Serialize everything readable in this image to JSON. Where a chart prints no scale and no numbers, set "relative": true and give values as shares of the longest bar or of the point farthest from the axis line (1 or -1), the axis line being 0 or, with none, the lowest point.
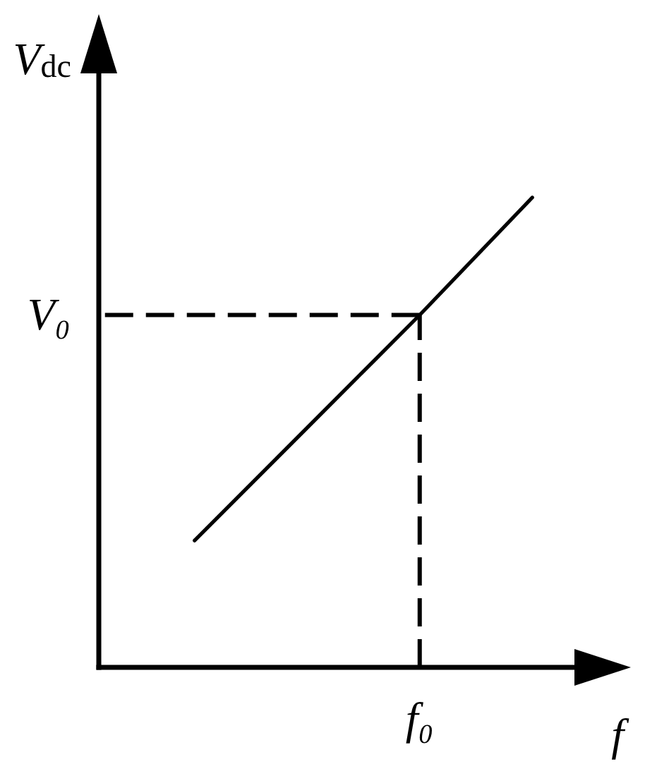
{
  "chart_data": {
    "type": "line",
    "xlabel": "f",
    "ylabel": "V$_{dc}$",
    "relative": true,
    "categories": [
      null,
      null,
      null,
      null
    ],
    "series": [
      {
        "color": "#000000",
        "values": [
          0.27,
          0.51,
          0.75,
          1
        ]
      }
    ],
    "ref_lines": [
      {
        "axis": "y",
        "value": 0.75,
        "label": "V₀",
        "line_style": "dashed",
        "color": "#000000"
      }
    ],
    "annotations": [
      "f₀"
    ]
  }
}
